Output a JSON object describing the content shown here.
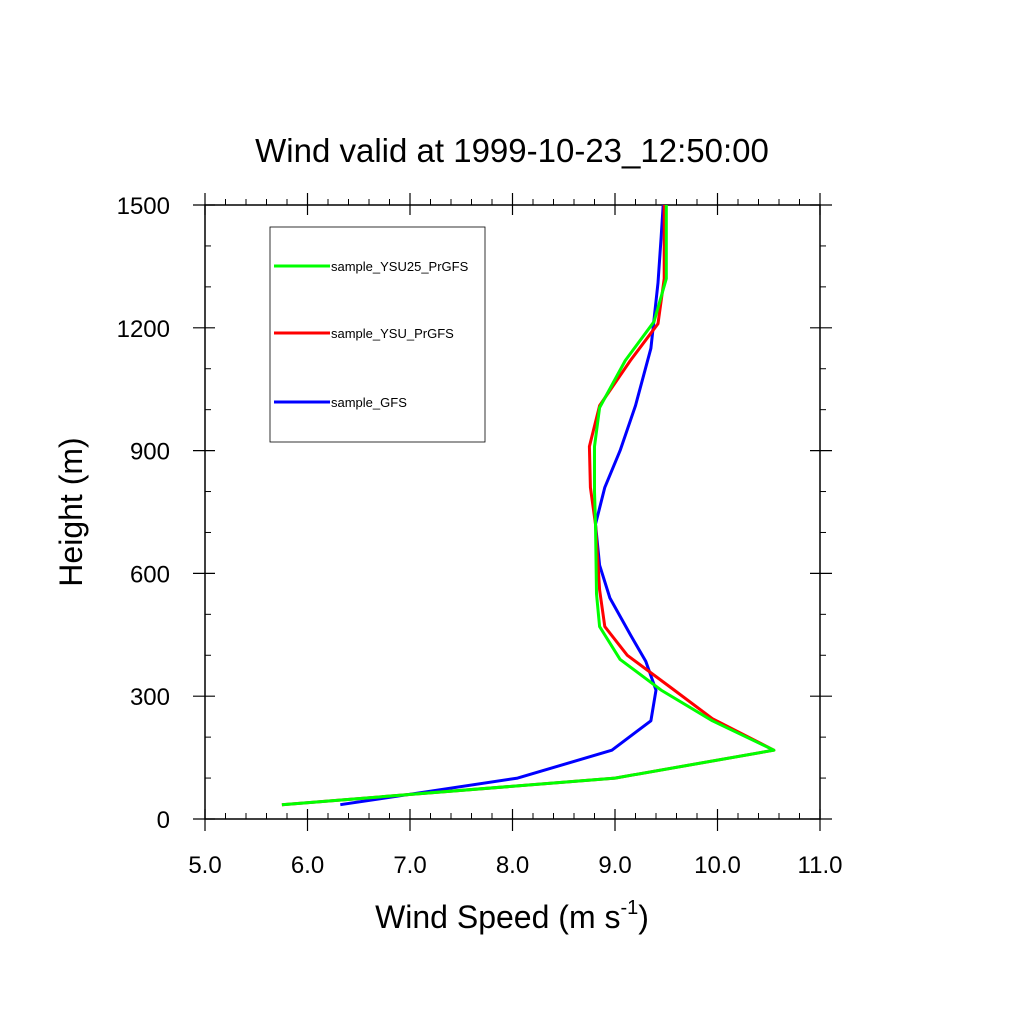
{
  "chart_data": {
    "type": "line",
    "title": "Wind valid at 1999-10-23_12:50:00",
    "xlabel": "Wind Speed (m s",
    "xlabel_superscript": "-1",
    "xlabel_close": ")",
    "ylabel": "Height (m)",
    "xlim": [
      5.0,
      11.0
    ],
    "ylim": [
      0,
      1500
    ],
    "x_ticks": [
      "5.0",
      "6.0",
      "7.0",
      "8.0",
      "9.0",
      "10.0",
      "11.0"
    ],
    "y_ticks": [
      "0",
      "300",
      "600",
      "900",
      "1200",
      "1500"
    ],
    "legend_position": "top-left",
    "series": [
      {
        "name": "sample_YSU25_PrGFS",
        "color": "#00ff00",
        "points": [
          [
            5.75,
            35
          ],
          [
            9.0,
            100
          ],
          [
            10.55,
            168
          ],
          [
            9.95,
            240
          ],
          [
            9.45,
            315
          ],
          [
            9.05,
            390
          ],
          [
            8.85,
            470
          ],
          [
            8.82,
            550
          ],
          [
            8.81,
            720
          ],
          [
            8.8,
            800
          ],
          [
            8.8,
            910
          ],
          [
            8.85,
            1005
          ],
          [
            9.1,
            1120
          ],
          [
            9.38,
            1215
          ],
          [
            9.5,
            1320
          ],
          [
            9.5,
            1500
          ]
        ]
      },
      {
        "name": "sample_YSU_PrGFS",
        "color": "#ff0000",
        "points": [
          [
            5.75,
            35
          ],
          [
            9.0,
            100
          ],
          [
            10.55,
            168
          ],
          [
            9.95,
            245
          ],
          [
            9.55,
            320
          ],
          [
            9.12,
            400
          ],
          [
            8.9,
            470
          ],
          [
            8.85,
            560
          ],
          [
            8.81,
            720
          ],
          [
            8.76,
            810
          ],
          [
            8.75,
            910
          ],
          [
            8.85,
            1010
          ],
          [
            9.15,
            1120
          ],
          [
            9.42,
            1210
          ],
          [
            9.48,
            1320
          ],
          [
            9.48,
            1500
          ]
        ]
      },
      {
        "name": "sample_GFS",
        "color": "#0000ff",
        "points": [
          [
            6.32,
            35
          ],
          [
            8.05,
            100
          ],
          [
            8.97,
            168
          ],
          [
            9.35,
            240
          ],
          [
            9.4,
            315
          ],
          [
            9.3,
            385
          ],
          [
            9.15,
            450
          ],
          [
            8.95,
            540
          ],
          [
            8.85,
            620
          ],
          [
            8.81,
            720
          ],
          [
            8.9,
            810
          ],
          [
            9.05,
            900
          ],
          [
            9.2,
            1010
          ],
          [
            9.35,
            1150
          ],
          [
            9.42,
            1310
          ],
          [
            9.45,
            1420
          ],
          [
            9.47,
            1500
          ]
        ]
      }
    ]
  }
}
